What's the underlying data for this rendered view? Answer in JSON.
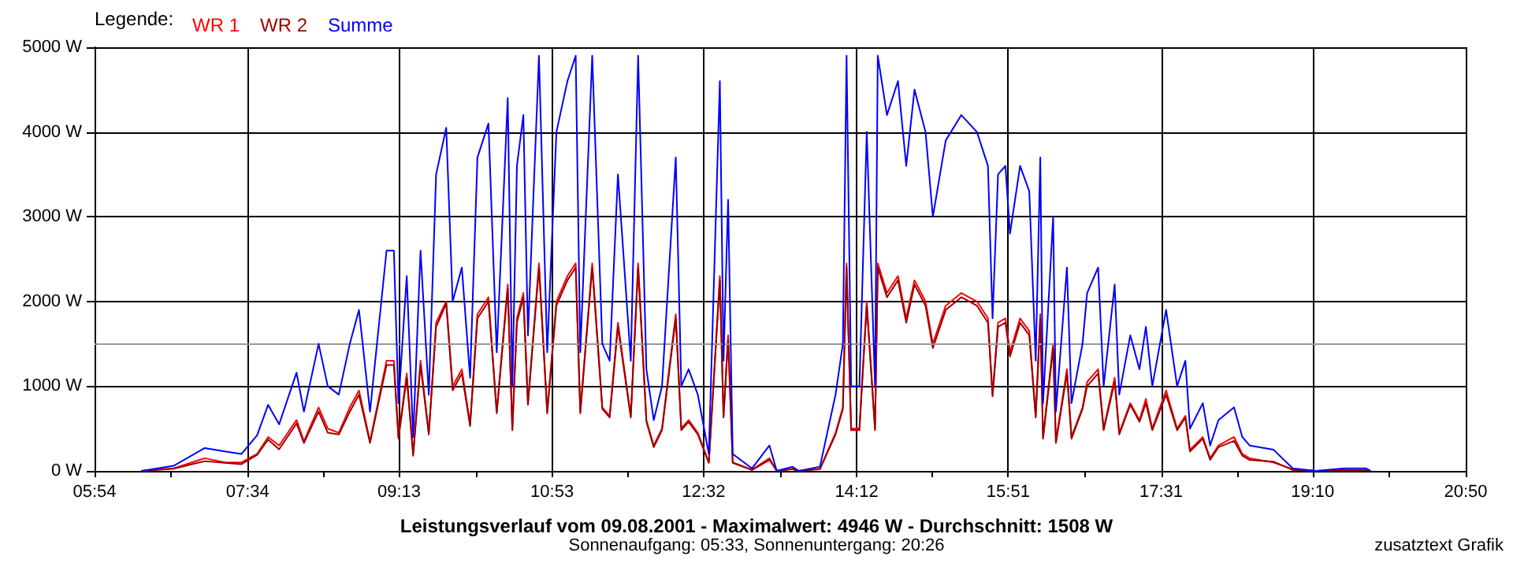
{
  "chart_data": {
    "type": "line",
    "title": "Leistungsverlauf vom 09.08.2001 - Maximalwert: 4946 W - Durchschnitt: 1508 W",
    "subtitle": "Sonnenaufgang: 05:33, Sonnenuntergang: 20:26",
    "legend_title": "Legende:",
    "legend": "top left",
    "grid": true,
    "marker": "none",
    "line_style": "solid",
    "annotations": [
      "zusatztext Grafik"
    ],
    "xlim": [
      5.9,
      20.8333
    ],
    "xticks": [
      {
        "value": 5.9,
        "label": "05:54"
      },
      {
        "value": 6.7333,
        "label": null
      },
      {
        "value": 7.5667,
        "label": "07:34"
      },
      {
        "value": 8.3917,
        "label": null
      },
      {
        "value": 9.2167,
        "label": "09:13"
      },
      {
        "value": 10.05,
        "label": null
      },
      {
        "value": 10.8833,
        "label": "10:53"
      },
      {
        "value": 11.7083,
        "label": null
      },
      {
        "value": 12.5333,
        "label": "12:32"
      },
      {
        "value": 13.3667,
        "label": null
      },
      {
        "value": 14.2,
        "label": "14:12"
      },
      {
        "value": 15.025,
        "label": null
      },
      {
        "value": 15.85,
        "label": "15:51"
      },
      {
        "value": 16.6833,
        "label": null
      },
      {
        "value": 17.5167,
        "label": "17:31"
      },
      {
        "value": 18.3417,
        "label": null
      },
      {
        "value": 19.1667,
        "label": "19:10"
      },
      {
        "value": 20.0,
        "label": null
      },
      {
        "value": 20.8333,
        "label": "20:50"
      }
    ],
    "ylim": [
      0,
      5000
    ],
    "yticks": [
      {
        "value": 0,
        "label": "0 W"
      },
      {
        "value": 1000,
        "label": "1000 W"
      },
      {
        "value": 2000,
        "label": "2000 W"
      },
      {
        "value": 3000,
        "label": "3000 W"
      },
      {
        "value": 4000,
        "label": "4000 W"
      },
      {
        "value": 5000,
        "label": "5000 W"
      }
    ],
    "ref_lines": [
      {
        "axis": "y",
        "value": 1508,
        "color": "#999999"
      }
    ],
    "x": [
      6.41,
      6.76,
      7.1,
      7.32,
      7.5,
      7.67,
      7.79,
      7.91,
      8.1,
      8.18,
      8.34,
      8.44,
      8.56,
      8.68,
      8.78,
      8.9,
      9.08,
      9.16,
      9.21,
      9.3,
      9.37,
      9.45,
      9.54,
      9.62,
      9.73,
      9.8,
      9.9,
      9.99,
      10.07,
      10.19,
      10.28,
      10.4,
      10.45,
      10.5,
      10.57,
      10.62,
      10.74,
      10.83,
      10.93,
      11.05,
      11.14,
      11.19,
      11.32,
      11.43,
      11.51,
      11.6,
      11.74,
      11.82,
      11.91,
      11.99,
      12.08,
      12.23,
      12.29,
      12.37,
      12.47,
      12.59,
      12.71,
      12.75,
      12.8,
      12.85,
      13.06,
      13.25,
      13.33,
      13.5,
      13.57,
      13.8,
      13.97,
      14.05,
      14.09,
      14.14,
      14.23,
      14.31,
      14.4,
      14.43,
      14.53,
      14.65,
      14.74,
      14.83,
      14.95,
      15.03,
      15.17,
      15.34,
      15.51,
      15.63,
      15.68,
      15.74,
      15.82,
      15.87,
      15.98,
      16.08,
      16.15,
      16.2,
      16.23,
      16.34,
      16.37,
      16.49,
      16.54,
      16.66,
      16.71,
      16.83,
      16.89,
      17.01,
      17.06,
      17.18,
      17.28,
      17.35,
      17.42,
      17.57,
      17.69,
      17.78,
      17.83,
      17.97,
      18.05,
      18.14,
      18.31,
      18.4,
      18.48,
      18.74,
      18.95,
      19.2,
      19.51,
      19.75,
      19.8
    ],
    "series": [
      {
        "name": "WR 1",
        "color": "#ff0000",
        "values": [
          0,
          30,
          150,
          100,
          100,
          200,
          400,
          300,
          600,
          350,
          750,
          500,
          450,
          750,
          950,
          350,
          1300,
          1300,
          400,
          1150,
          200,
          1300,
          450,
          1750,
          2000,
          1000,
          1200,
          550,
          1850,
          2050,
          700,
          2200,
          500,
          1800,
          2100,
          800,
          2450,
          700,
          2000,
          2300,
          2450,
          700,
          2450,
          750,
          650,
          1750,
          650,
          2450,
          600,
          300,
          500,
          1850,
          500,
          600,
          450,
          100,
          2300,
          650,
          1600,
          100,
          15,
          150,
          0,
          25,
          0,
          25,
          450,
          750,
          2450,
          500,
          500,
          2000,
          500,
          2450,
          2100,
          2300,
          1800,
          2250,
          2000,
          1500,
          1950,
          2100,
          2000,
          1800,
          900,
          1750,
          1800,
          1400,
          1800,
          1650,
          650,
          1850,
          400,
          1500,
          350,
          1200,
          400,
          750,
          1050,
          1200,
          500,
          1100,
          450,
          800,
          600,
          850,
          500,
          950,
          500,
          650,
          250,
          400,
          150,
          300,
          400,
          200,
          150,
          100,
          20,
          0,
          null,
          null,
          null
        ]
      },
      {
        "name": "WR 2",
        "color": "#990000",
        "values": [
          0,
          25,
          115,
          95,
          80,
          190,
          370,
          255,
          560,
          330,
          700,
          450,
          430,
          700,
          900,
          330,
          1250,
          1250,
          380,
          1100,
          180,
          1250,
          430,
          1700,
          1975,
          950,
          1150,
          530,
          1800,
          2000,
          680,
          2150,
          480,
          1750,
          2050,
          780,
          2400,
          680,
          1950,
          2250,
          2400,
          680,
          2400,
          730,
          630,
          1700,
          630,
          2400,
          580,
          280,
          480,
          1800,
          480,
          580,
          430,
          95,
          2250,
          630,
          1550,
          95,
          10,
          130,
          0,
          20,
          0,
          20,
          430,
          730,
          2400,
          480,
          480,
          1950,
          480,
          2400,
          2050,
          2250,
          1750,
          2200,
          1950,
          1450,
          1900,
          2050,
          1950,
          1750,
          880,
          1700,
          1750,
          1350,
          1750,
          1600,
          630,
          1800,
          380,
          1450,
          330,
          1150,
          380,
          730,
          1000,
          1150,
          480,
          1050,
          430,
          780,
          580,
          800,
          480,
          900,
          480,
          630,
          230,
          380,
          130,
          280,
          355,
          180,
          130,
          110,
          10,
          0,
          10,
          10,
          0
        ]
      },
      {
        "name": "Summe",
        "color": "#0000ff",
        "values": [
          0,
          60,
          270,
          230,
          200,
          420,
          780,
          550,
          1160,
          700,
          1500,
          1000,
          900,
          1500,
          1900,
          700,
          2600,
          2600,
          800,
          2300,
          400,
          2600,
          900,
          3500,
          4050,
          2000,
          2400,
          1100,
          3700,
          4100,
          1400,
          4400,
          1000,
          3600,
          4200,
          1600,
          4900,
          1400,
          4000,
          4600,
          4900,
          1400,
          4900,
          1500,
          1300,
          3500,
          1300,
          4900,
          1200,
          600,
          1000,
          3700,
          1000,
          1200,
          900,
          200,
          4600,
          1300,
          3200,
          200,
          30,
          300,
          0,
          50,
          0,
          50,
          900,
          1500,
          4900,
          1000,
          1000,
          4000,
          1000,
          4900,
          4200,
          4600,
          3600,
          4500,
          4000,
          3000,
          3900,
          4200,
          4000,
          3600,
          1800,
          3500,
          3600,
          2800,
          3600,
          3300,
          1300,
          3700,
          800,
          3000,
          700,
          2400,
          800,
          1500,
          2100,
          2400,
          1000,
          2200,
          900,
          1600,
          1200,
          1700,
          1000,
          1900,
          1000,
          1300,
          500,
          800,
          300,
          600,
          750,
          400,
          300,
          250,
          30,
          0,
          30,
          30,
          0
        ]
      }
    ]
  }
}
